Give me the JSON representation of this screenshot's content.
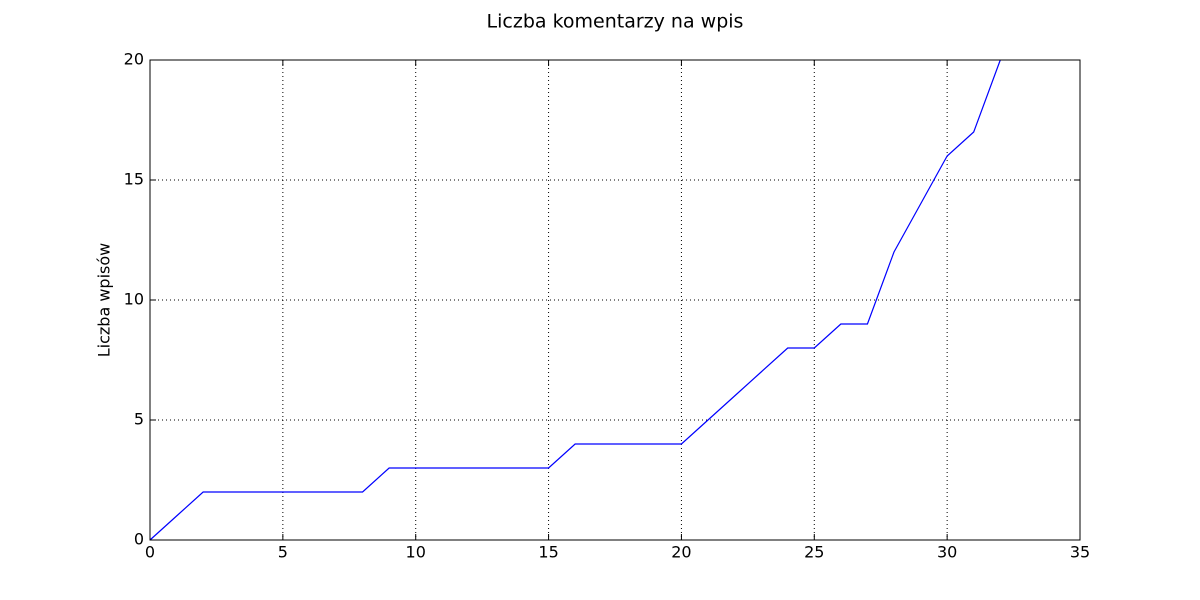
{
  "chart_data": {
    "type": "line",
    "title": "Liczba komentarzy na wpis",
    "y_label": "Liczba wpisów",
    "x": [
      0,
      1,
      2,
      3,
      4,
      5,
      6,
      7,
      8,
      9,
      10,
      11,
      12,
      13,
      14,
      15,
      16,
      17,
      18,
      19,
      20,
      21,
      22,
      23,
      24,
      25,
      26,
      27,
      28,
      29,
      30,
      31,
      32
    ],
    "series": [
      {
        "color": "#0000ff",
        "values": [
          0,
          1,
          2,
          2,
          2,
          2,
          2,
          2,
          2,
          3,
          3,
          3,
          3,
          3,
          3,
          3,
          4,
          4,
          4,
          4,
          4,
          5,
          6,
          7,
          8,
          8,
          9,
          9,
          12,
          14,
          16,
          17,
          20
        ]
      }
    ],
    "xlim": [
      0,
      35
    ],
    "xticks": [
      0,
      5,
      10,
      15,
      20,
      25,
      30,
      35
    ],
    "ylim": [
      0,
      20
    ],
    "yticks": [
      0,
      5,
      10,
      15,
      20
    ],
    "grid": true
  }
}
